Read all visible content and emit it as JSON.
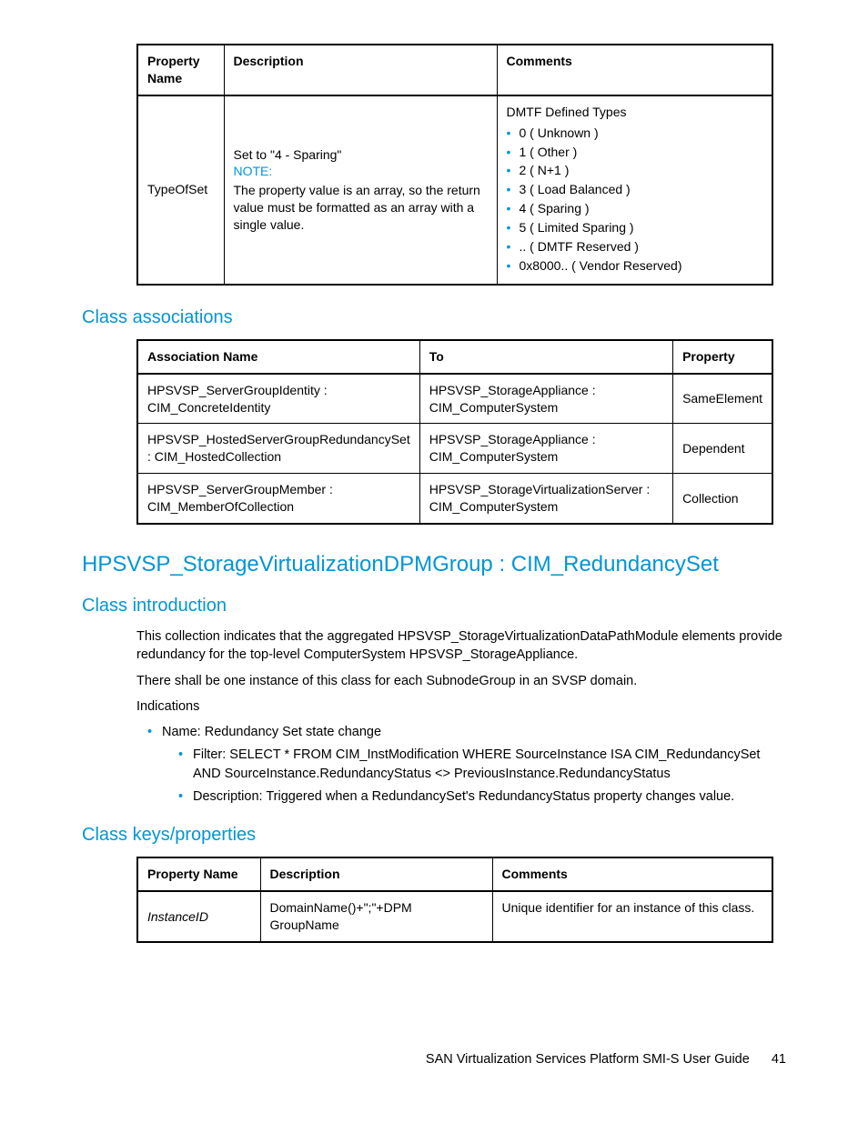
{
  "colors": {
    "link": "#0096d6",
    "text": "#000000",
    "background": "#ffffff"
  },
  "typography": {
    "body_fontsize": 14.5,
    "table_fontsize": 14,
    "h1_fontsize": 24,
    "h2_fontsize": 20
  },
  "table1": {
    "headers": [
      "Property Name",
      "Description",
      "Comments"
    ],
    "row": {
      "property_name": "TypeOfSet",
      "description": {
        "line1": "Set to \"4 - Sparing\"",
        "note_label": "NOTE:",
        "note_body": "The property value is an array, so the return value must be formatted as an array with a single value."
      },
      "comments": {
        "heading": "DMTF Defined Types",
        "items": [
          "0 ( Unknown )",
          "1 ( Other )",
          "2 ( N+1 )",
          "3 ( Load Balanced )",
          "4 ( Sparing )",
          "5 ( Limited Sparing )",
          ".. ( DMTF Reserved )",
          "0x8000.. ( Vendor Reserved)"
        ]
      }
    }
  },
  "section1_title": "Class associations",
  "table2": {
    "headers": [
      "Association Name",
      "To",
      "Property"
    ],
    "rows": [
      {
        "a": "HPSVSP_ServerGroupIdentity : CIM_ConcreteIdentity",
        "b": "HPSVSP_StorageAppliance : CIM_ComputerSystem",
        "c": "SameElement"
      },
      {
        "a": "HPSVSP_HostedServerGroupRedundancySet : CIM_HostedCollection",
        "b": "HPSVSP_StorageAppliance : CIM_ComputerSystem",
        "c": "Dependent"
      },
      {
        "a": "HPSVSP_ServerGroupMember : CIM_MemberOfCollection",
        "b": "HPSVSP_StorageVirtualizationServer : CIM_ComputerSystem",
        "c": "Collection"
      }
    ]
  },
  "main_heading": "HPSVSP_StorageVirtualizationDPMGroup : CIM_RedundancySet",
  "intro": {
    "title": "Class introduction",
    "p1": "This collection indicates that the aggregated HPSVSP_StorageVirtualizationDataPathModule elements provide redundancy for the top-level ComputerSystem HPSVSP_StorageAppliance.",
    "p2": "There shall be one instance of this class for each SubnodeGroup in an SVSP domain.",
    "p3": "Indications",
    "list": {
      "item1": "Name: Redundancy Set state change",
      "sub1": "Filter: SELECT * FROM CIM_InstModification WHERE SourceInstance ISA CIM_RedundancySet AND SourceInstance.RedundancyStatus <> PreviousInstance.RedundancyStatus",
      "sub2": "Description: Triggered when a RedundancySet's RedundancyStatus property changes value."
    }
  },
  "section3_title": "Class keys/properties",
  "table3": {
    "headers": [
      "Property Name",
      "Description",
      "Comments"
    ],
    "row": {
      "a": "InstanceID",
      "b": "DomainName()+\";\"+DPM GroupName",
      "c": "Unique identifier for an instance of this class."
    }
  },
  "footer": {
    "title": "SAN Virtualization Services Platform SMI-S User Guide",
    "page": "41"
  }
}
